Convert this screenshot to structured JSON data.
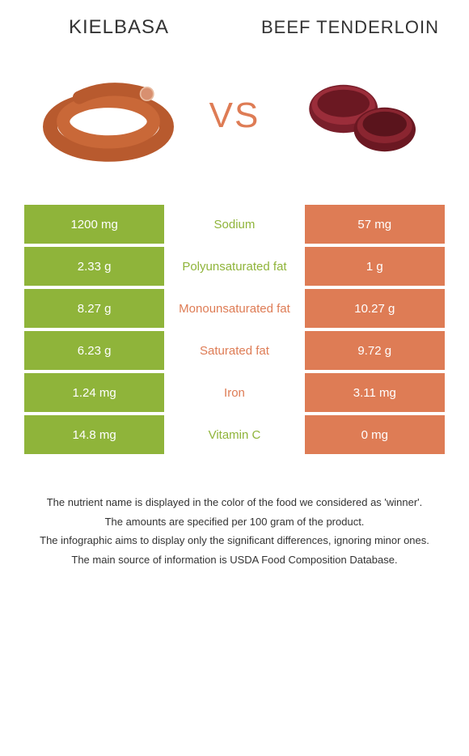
{
  "colors": {
    "left": "#8fb43a",
    "right": "#de7c55",
    "background": "#ffffff"
  },
  "header": {
    "left_title": "Kielbasa",
    "right_title": "Beef tenderloin",
    "vs": "VS"
  },
  "images": {
    "left_alt": "kielbasa-sausage",
    "right_alt": "beef-tenderloin-steak"
  },
  "table": {
    "rows": [
      {
        "left": "1200 mg",
        "nutrient": "Sodium",
        "right": "57 mg",
        "winner": "left"
      },
      {
        "left": "2.33 g",
        "nutrient": "Polyunsaturated fat",
        "right": "1 g",
        "winner": "left"
      },
      {
        "left": "8.27 g",
        "nutrient": "Monounsaturated fat",
        "right": "10.27 g",
        "winner": "right"
      },
      {
        "left": "6.23 g",
        "nutrient": "Saturated fat",
        "right": "9.72 g",
        "winner": "right"
      },
      {
        "left": "1.24 mg",
        "nutrient": "Iron",
        "right": "3.11 mg",
        "winner": "right"
      },
      {
        "left": "14.8 mg",
        "nutrient": "Vitamin C",
        "right": "0 mg",
        "winner": "left"
      }
    ]
  },
  "footnotes": [
    "The nutrient name is displayed in the color of the food we considered as 'winner'.",
    "The amounts are specified per 100 gram of the product.",
    "The infographic aims to display only the significant differences, ignoring minor ones.",
    "The main source of information is USDA Food Composition Database."
  ]
}
